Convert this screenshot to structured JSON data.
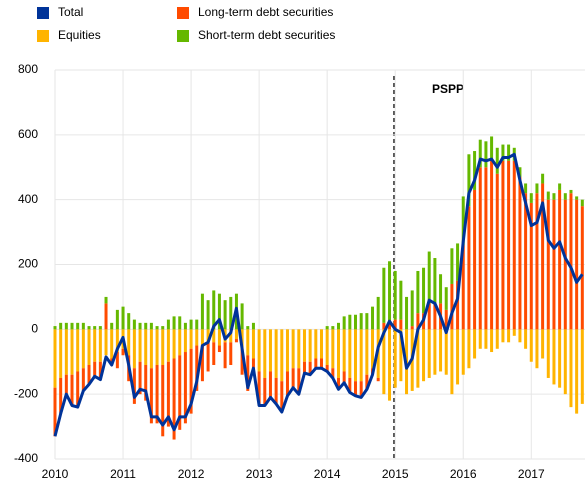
{
  "chart_data": {
    "type": "bar",
    "stacked": true,
    "annotations": [
      {
        "text": "PSPP"
      }
    ],
    "categories": [
      "2010",
      null,
      null,
      null,
      null,
      null,
      null,
      null,
      null,
      null,
      null,
      null,
      "2011",
      null,
      null,
      null,
      null,
      null,
      null,
      null,
      null,
      null,
      null,
      null,
      "2012",
      null,
      null,
      null,
      null,
      null,
      null,
      null,
      null,
      null,
      null,
      null,
      "2013",
      null,
      null,
      null,
      null,
      null,
      null,
      null,
      null,
      null,
      null,
      null,
      "2014",
      null,
      null,
      null,
      null,
      null,
      null,
      null,
      null,
      null,
      null,
      null,
      "2015",
      null,
      null,
      null,
      null,
      null,
      null,
      null,
      null,
      null,
      null,
      null,
      "2016",
      null,
      null,
      null,
      null,
      null,
      null,
      null,
      null,
      null,
      null,
      null,
      "2017",
      null,
      null,
      null,
      null,
      null,
      null,
      null,
      null,
      null
    ],
    "ylim": [
      -400,
      800
    ],
    "yticks": [
      -400,
      -200,
      0,
      200,
      400,
      600,
      800
    ],
    "grid": true,
    "series": [
      {
        "name": "Total",
        "type": "line",
        "color": "#003399",
        "values": [
          -330,
          -260,
          -200,
          -235,
          -240,
          -190,
          -170,
          -145,
          -155,
          -85,
          -110,
          -60,
          -25,
          -110,
          -210,
          -185,
          -190,
          -270,
          -270,
          -295,
          -270,
          -310,
          -270,
          -270,
          -230,
          -160,
          -50,
          -40,
          10,
          30,
          -30,
          -10,
          65,
          -60,
          -180,
          -120,
          -235,
          -235,
          -210,
          -230,
          -255,
          -205,
          -180,
          -200,
          -135,
          -140,
          -120,
          -120,
          -130,
          -150,
          -185,
          -165,
          -195,
          -205,
          -210,
          -185,
          -140,
          -55,
          -10,
          25,
          0,
          -10,
          -120,
          -90,
          0,
          30,
          90,
          80,
          40,
          -10,
          50,
          95,
          270,
          420,
          460,
          525,
          520,
          525,
          500,
          530,
          530,
          540,
          460,
          390,
          320,
          330,
          390,
          275,
          250,
          270,
          220,
          190,
          145,
          170
        ]
      },
      {
        "name": "Equities",
        "color": "#ffb400",
        "values": [
          -180,
          -150,
          -140,
          -140,
          -130,
          -120,
          -110,
          -100,
          -100,
          -80,
          -90,
          -70,
          -60,
          -80,
          -120,
          -100,
          -110,
          -120,
          -110,
          -110,
          -100,
          -90,
          -80,
          -70,
          -60,
          -50,
          -50,
          -40,
          -40,
          -50,
          -40,
          -40,
          -30,
          -60,
          -80,
          -90,
          -130,
          -150,
          -130,
          -150,
          -160,
          -130,
          -120,
          -120,
          -100,
          -100,
          -90,
          -90,
          -110,
          -120,
          -150,
          -130,
          -150,
          -160,
          -160,
          -140,
          -120,
          -150,
          -200,
          -220,
          -180,
          -160,
          -200,
          -190,
          -180,
          -160,
          -150,
          -140,
          -130,
          -140,
          -200,
          -170,
          -140,
          -120,
          -90,
          -60,
          -60,
          -70,
          -60,
          -40,
          -40,
          -20,
          -40,
          -60,
          -100,
          -120,
          -90,
          -150,
          -170,
          -180,
          -200,
          -240,
          -260,
          -230
        ]
      },
      {
        "name": "Long-term debt securities",
        "color": "#ff4b00",
        "values": [
          -150,
          -110,
          -60,
          -95,
          -110,
          -70,
          -60,
          -45,
          -55,
          80,
          -20,
          -50,
          -20,
          -80,
          -110,
          -100,
          -110,
          -170,
          -180,
          -220,
          -200,
          -250,
          -230,
          -220,
          -200,
          -140,
          -110,
          -90,
          -70,
          -20,
          -80,
          -70,
          -10,
          -80,
          -110,
          -50,
          -105,
          -85,
          -80,
          -80,
          -95,
          -75,
          -60,
          -80,
          -35,
          -40,
          -30,
          -30,
          -20,
          -30,
          -35,
          -35,
          -45,
          -45,
          -50,
          -45,
          -20,
          -10,
          20,
          20,
          30,
          30,
          0,
          10,
          50,
          50,
          80,
          80,
          80,
          60,
          140,
          150,
          260,
          380,
          430,
          500,
          500,
          520,
          480,
          520,
          520,
          520,
          470,
          420,
          390,
          420,
          450,
          400,
          400,
          430,
          400,
          420,
          400,
          380
        ]
      },
      {
        "name": "Short-term debt securities",
        "color": "#65b800",
        "values": [
          10,
          20,
          20,
          20,
          20,
          20,
          10,
          10,
          10,
          20,
          20,
          60,
          70,
          50,
          30,
          20,
          20,
          20,
          10,
          10,
          30,
          40,
          40,
          20,
          30,
          30,
          110,
          90,
          120,
          110,
          90,
          100,
          110,
          80,
          10,
          20,
          0,
          0,
          0,
          0,
          0,
          0,
          0,
          0,
          0,
          0,
          0,
          0,
          10,
          10,
          20,
          40,
          45,
          45,
          50,
          50,
          70,
          100,
          170,
          190,
          150,
          120,
          100,
          110,
          130,
          140,
          160,
          140,
          90,
          70,
          110,
          115,
          150,
          160,
          120,
          85,
          80,
          75,
          80,
          50,
          50,
          40,
          30,
          30,
          30,
          30,
          30,
          25,
          20,
          20,
          20,
          10,
          10,
          20
        ]
      }
    ]
  }
}
